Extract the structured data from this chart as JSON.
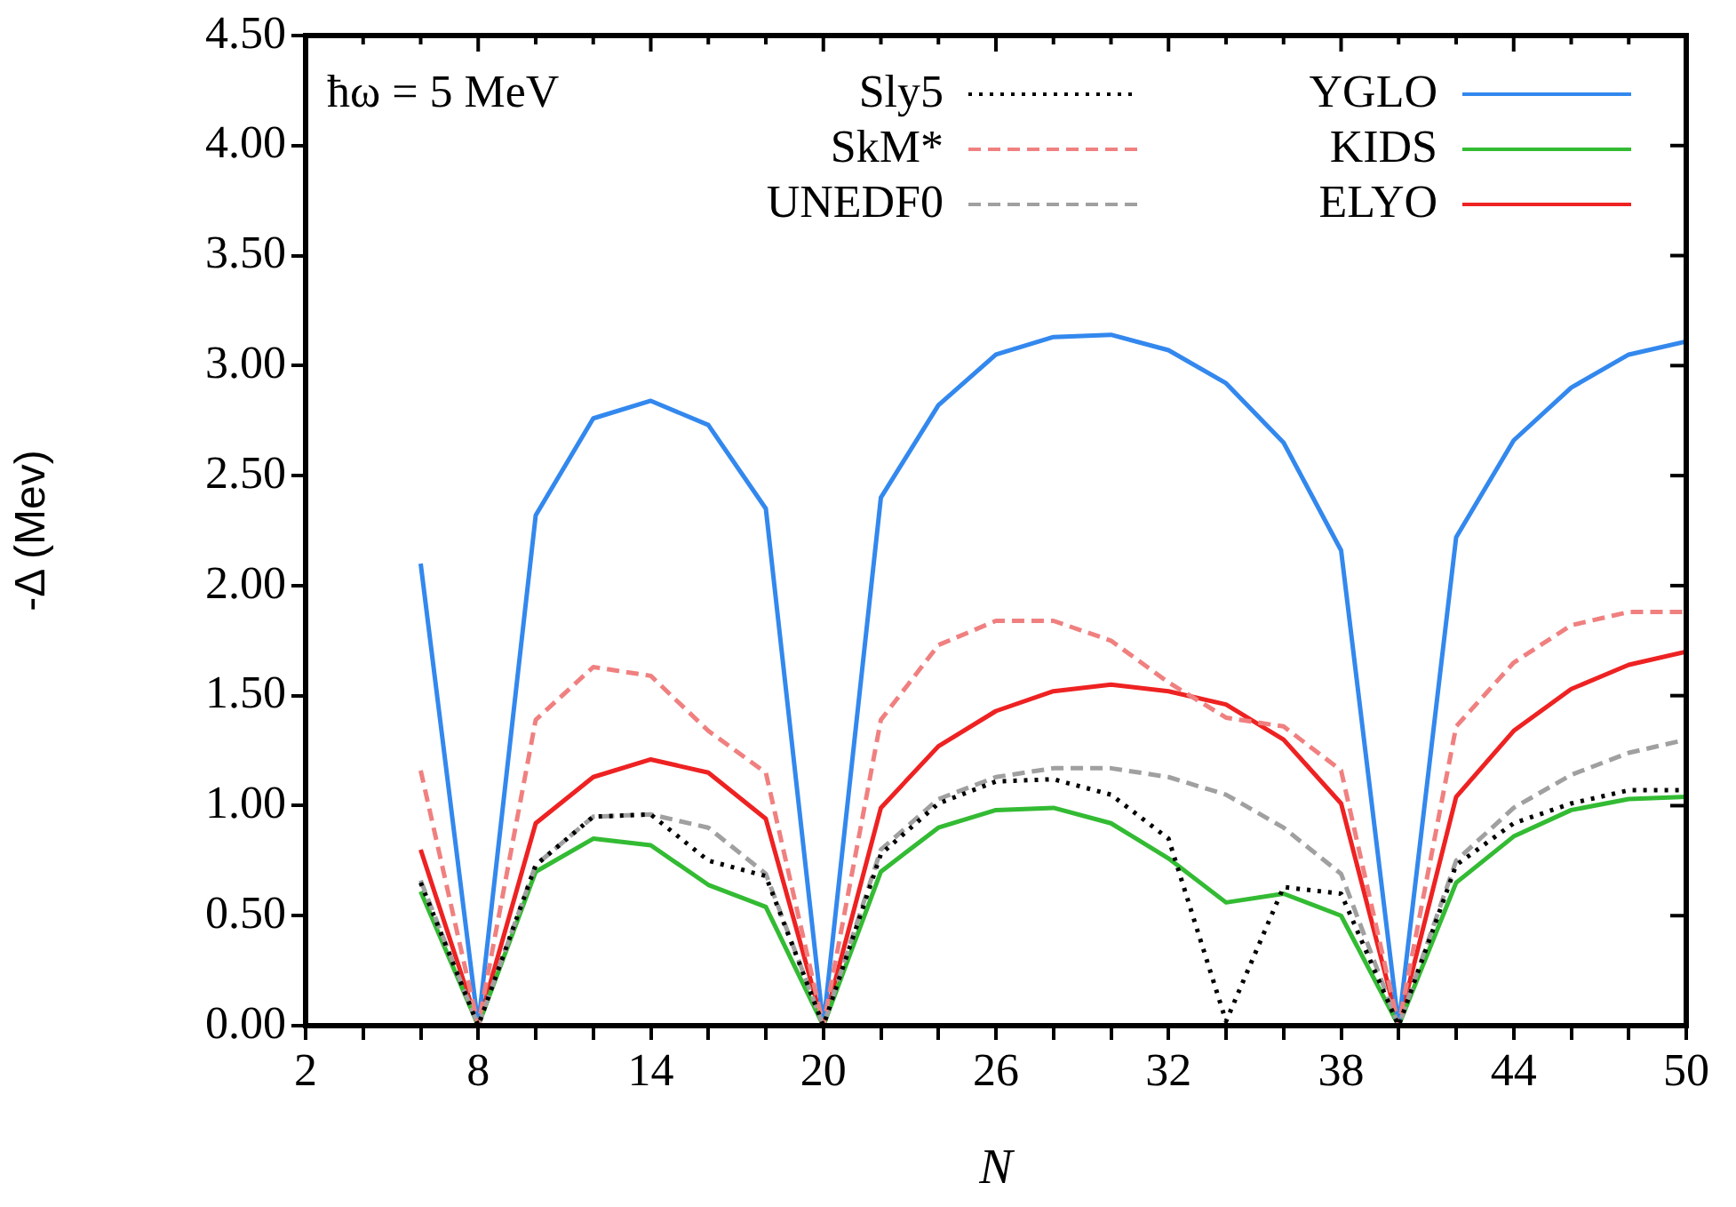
{
  "chart_data": {
    "type": "line",
    "xlabel": "N",
    "ylabel": "-Δ (Mev)",
    "annotations": [
      "ħω = 5 MeV"
    ],
    "x": [
      6,
      8,
      10,
      12,
      14,
      16,
      18,
      20,
      22,
      24,
      26,
      28,
      30,
      32,
      34,
      36,
      38,
      40,
      42,
      44,
      46,
      48,
      50
    ],
    "xlim": [
      2,
      50
    ],
    "xticks": [
      2,
      {
        "value": 4,
        "label": null
      },
      {
        "value": 6,
        "label": null
      },
      8,
      {
        "value": 10,
        "label": null
      },
      {
        "value": 12,
        "label": null
      },
      14,
      {
        "value": 16,
        "label": null
      },
      {
        "value": 18,
        "label": null
      },
      20,
      {
        "value": 22,
        "label": null
      },
      {
        "value": 24,
        "label": null
      },
      26,
      {
        "value": 28,
        "label": null
      },
      {
        "value": 30,
        "label": null
      },
      32,
      {
        "value": 34,
        "label": null
      },
      {
        "value": 36,
        "label": null
      },
      38,
      {
        "value": 40,
        "label": null
      },
      {
        "value": 42,
        "label": null
      },
      44,
      {
        "value": 46,
        "label": null
      },
      {
        "value": 48,
        "label": null
      },
      50
    ],
    "ylim": [
      0,
      4.5
    ],
    "yticks": [
      {
        "value": 0,
        "label": "0.00"
      },
      {
        "value": 0.5,
        "label": "0.50"
      },
      {
        "value": 1,
        "label": "1.00"
      },
      {
        "value": 1.5,
        "label": "1.50"
      },
      {
        "value": 2,
        "label": "2.00"
      },
      {
        "value": 2.5,
        "label": "2.50"
      },
      {
        "value": 3,
        "label": "3.00"
      },
      {
        "value": 3.5,
        "label": "3.50"
      },
      {
        "value": 4,
        "label": "4.00"
      },
      {
        "value": 4.5,
        "label": "4.50"
      }
    ],
    "grid": false,
    "legend": "top",
    "marker": "none",
    "series": [
      {
        "name": "Sly5",
        "color": "#000000",
        "line_style": "dotted",
        "values": [
          0.65,
          0,
          0.73,
          0.95,
          0.96,
          0.75,
          0.68,
          0,
          0.78,
          1.01,
          1.11,
          1.12,
          1.05,
          0.85,
          0.02,
          0.63,
          0.6,
          0,
          0.73,
          0.92,
          1.01,
          1.07,
          1.07
        ]
      },
      {
        "name": "SkM*",
        "color": "#f08080",
        "line_style": "dashed",
        "values": [
          1.16,
          0,
          1.39,
          1.63,
          1.59,
          1.34,
          1.15,
          0,
          1.39,
          1.73,
          1.84,
          1.84,
          1.75,
          1.56,
          1.4,
          1.36,
          1.16,
          0,
          1.36,
          1.65,
          1.82,
          1.88,
          1.88
        ]
      },
      {
        "name": "UNEDF0",
        "color": "#a0a0a0",
        "line_style": "dashed",
        "values": [
          0.66,
          0,
          0.73,
          0.95,
          0.96,
          0.9,
          0.69,
          0,
          0.8,
          1.03,
          1.13,
          1.17,
          1.17,
          1.13,
          1.05,
          0.9,
          0.69,
          0,
          0.75,
          0.99,
          1.14,
          1.24,
          1.3
        ]
      },
      {
        "name": "YGLO",
        "color": "#3388ee",
        "line_style": "solid",
        "values": [
          2.1,
          0,
          2.32,
          2.76,
          2.84,
          2.73,
          2.35,
          0,
          2.4,
          2.82,
          3.05,
          3.13,
          3.14,
          3.07,
          2.92,
          2.65,
          2.16,
          0,
          2.22,
          2.66,
          2.9,
          3.05,
          3.11
        ]
      },
      {
        "name": "KIDS",
        "color": "#33bb33",
        "line_style": "solid",
        "values": [
          0.61,
          0,
          0.7,
          0.85,
          0.82,
          0.64,
          0.54,
          0,
          0.7,
          0.9,
          0.98,
          0.99,
          0.92,
          0.76,
          0.56,
          0.6,
          0.5,
          0,
          0.65,
          0.86,
          0.98,
          1.03,
          1.04
        ]
      },
      {
        "name": "ELYO",
        "color": "#ee2222",
        "line_style": "solid",
        "values": [
          0.8,
          0,
          0.92,
          1.13,
          1.21,
          1.15,
          0.94,
          0,
          0.99,
          1.27,
          1.43,
          1.52,
          1.55,
          1.52,
          1.46,
          1.3,
          1.01,
          0,
          1.04,
          1.34,
          1.53,
          1.64,
          1.7
        ]
      }
    ]
  }
}
